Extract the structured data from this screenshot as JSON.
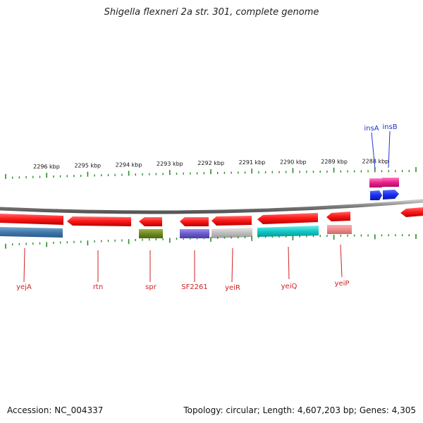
{
  "title": "Shigella flexneri 2a str. 301, complete genome",
  "footer": {
    "accession": "Accession: NC_004337",
    "summary": "Topology: circular; Length: 4,607,203 bp; Genes: 4,305"
  },
  "scale_labels": [
    "2296 kbp",
    "2295 kbp",
    "2294 kbp",
    "2293 kbp",
    "2292 kbp",
    "2291 kbp",
    "2290 kbp",
    "2289 kbp",
    "2288 kbp"
  ],
  "colors": {
    "backbone": "#8c8c8c",
    "tick": "#2a8a2a",
    "gene_label_red": "#cc2222",
    "gene_label_blue": "#2233cc"
  },
  "genes": [
    {
      "name": "yejA",
      "color": "#ff1a1a",
      "label_color": "#cc2222",
      "strand": "reverse"
    },
    {
      "name": "rtn",
      "color": "#ff1a1a",
      "label_color": "#cc2222",
      "strand": "reverse"
    },
    {
      "name": "spr",
      "color": "#ff1a1a",
      "label_color": "#cc2222",
      "strand": "reverse"
    },
    {
      "name": "SF2261",
      "color": "#ff1a1a",
      "label_color": "#cc2222",
      "strand": "reverse"
    },
    {
      "name": "yeiR",
      "color": "#ff1a1a",
      "label_color": "#cc2222",
      "strand": "reverse"
    },
    {
      "name": "yeiQ",
      "color": "#ff1a1a",
      "label_color": "#cc2222",
      "strand": "reverse"
    },
    {
      "name": "yeiP",
      "color": "#ff1a1a",
      "label_color": "#cc2222",
      "strand": "reverse"
    },
    {
      "name": "insA",
      "color": "#e8208a",
      "label_color": "#2233cc",
      "strand": "forward"
    },
    {
      "name": "insB",
      "color": "#e8208a",
      "label_color": "#2233cc",
      "strand": "forward"
    }
  ]
}
